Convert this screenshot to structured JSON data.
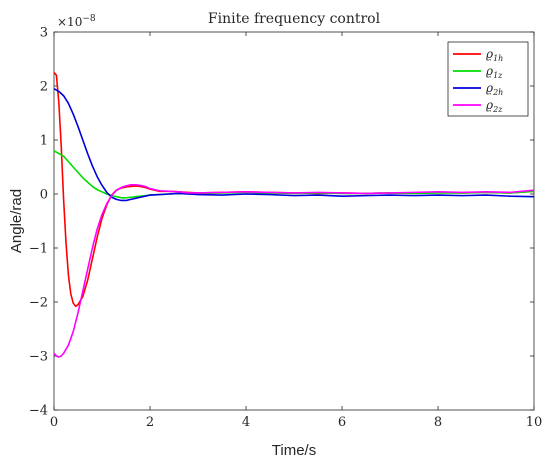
{
  "chart_data": {
    "type": "line",
    "title": "Finite frequency control",
    "xlabel": "Time/s",
    "ylabel": "Angle/rad",
    "y_exponent_base": "×10",
    "y_exponent_power": "−8",
    "xlim": [
      0,
      10
    ],
    "ylim": [
      -4,
      3
    ],
    "xticks": [
      0,
      2,
      4,
      6,
      8,
      10
    ],
    "yticks": [
      -4,
      -3,
      -2,
      -1,
      0,
      1,
      2,
      3
    ],
    "grid": false,
    "legend_position": "top-right",
    "series": [
      {
        "name_base": "ϱ",
        "name_sub": "1h",
        "color": "#ff0000",
        "x": [
          0,
          0.05,
          0.1,
          0.15,
          0.2,
          0.25,
          0.3,
          0.35,
          0.4,
          0.45,
          0.5,
          0.6,
          0.7,
          0.8,
          0.9,
          1.0,
          1.1,
          1.2,
          1.3,
          1.4,
          1.5,
          1.6,
          1.7,
          1.8,
          1.9,
          2.0,
          2.2,
          2.4,
          2.6,
          2.8,
          3.0,
          3.5,
          4.0,
          4.5,
          5.0,
          5.5,
          6.0,
          6.5,
          7.0,
          7.5,
          8.0,
          8.5,
          9.0,
          9.5,
          10.0
        ],
        "y": [
          2.25,
          2.2,
          1.7,
          0.9,
          -0.1,
          -0.9,
          -1.5,
          -1.85,
          -2.02,
          -2.08,
          -2.05,
          -1.9,
          -1.6,
          -1.2,
          -0.8,
          -0.45,
          -0.2,
          -0.02,
          0.07,
          0.11,
          0.13,
          0.14,
          0.15,
          0.14,
          0.12,
          0.09,
          0.05,
          0.05,
          0.04,
          0.03,
          0.02,
          0.03,
          0.04,
          0.03,
          0.02,
          0.01,
          0.02,
          0.01,
          0.02,
          0.02,
          0.03,
          0.02,
          0.03,
          0.02,
          0.05
        ]
      },
      {
        "name_base": "ϱ",
        "name_sub": "1z",
        "color": "#00dd00",
        "x": [
          0,
          0.1,
          0.2,
          0.3,
          0.4,
          0.5,
          0.6,
          0.7,
          0.8,
          0.9,
          1.0,
          1.1,
          1.2,
          1.3,
          1.4,
          1.5,
          1.6,
          1.7,
          1.8,
          1.9,
          2.0,
          2.2,
          2.4,
          2.6,
          2.8,
          3.0,
          3.5,
          4.0,
          4.5,
          5.0,
          5.5,
          6.0,
          6.5,
          7.0,
          7.5,
          8.0,
          8.5,
          9.0,
          9.5,
          10.0
        ],
        "y": [
          0.8,
          0.75,
          0.7,
          0.6,
          0.5,
          0.4,
          0.3,
          0.22,
          0.14,
          0.08,
          0.04,
          0.0,
          -0.03,
          -0.05,
          -0.07,
          -0.07,
          -0.06,
          -0.05,
          -0.04,
          -0.03,
          -0.02,
          -0.01,
          0.0,
          0.01,
          0.0,
          0.01,
          0.02,
          0.03,
          0.02,
          0.01,
          0.02,
          0.01,
          0.01,
          0.02,
          0.01,
          0.02,
          0.02,
          0.03,
          0.02,
          0.05
        ]
      },
      {
        "name_base": "ϱ",
        "name_sub": "2h",
        "color": "#0000dd",
        "x": [
          0,
          0.1,
          0.2,
          0.3,
          0.4,
          0.5,
          0.6,
          0.7,
          0.8,
          0.9,
          1.0,
          1.1,
          1.2,
          1.3,
          1.4,
          1.5,
          1.6,
          1.7,
          1.8,
          1.9,
          2.0,
          2.2,
          2.4,
          2.6,
          2.8,
          3.0,
          3.5,
          4.0,
          4.5,
          5.0,
          5.5,
          6.0,
          6.5,
          7.0,
          7.5,
          8.0,
          8.5,
          9.0,
          9.5,
          10.0
        ],
        "y": [
          1.95,
          1.9,
          1.82,
          1.68,
          1.48,
          1.25,
          1.0,
          0.75,
          0.52,
          0.32,
          0.16,
          0.03,
          -0.06,
          -0.1,
          -0.12,
          -0.12,
          -0.1,
          -0.08,
          -0.06,
          -0.04,
          -0.02,
          -0.01,
          0.0,
          0.01,
          0.0,
          -0.01,
          -0.02,
          0.0,
          -0.01,
          -0.03,
          -0.02,
          -0.04,
          -0.03,
          -0.02,
          -0.03,
          -0.02,
          -0.03,
          -0.02,
          -0.04,
          -0.05
        ]
      },
      {
        "name_base": "ϱ",
        "name_sub": "2z",
        "color": "#ff00ff",
        "x": [
          0,
          0.05,
          0.1,
          0.15,
          0.2,
          0.3,
          0.4,
          0.5,
          0.6,
          0.7,
          0.8,
          0.9,
          1.0,
          1.1,
          1.2,
          1.3,
          1.4,
          1.5,
          1.6,
          1.7,
          1.8,
          1.9,
          2.0,
          2.2,
          2.4,
          2.6,
          2.8,
          3.0,
          3.5,
          4.0,
          4.5,
          5.0,
          5.5,
          6.0,
          6.5,
          7.0,
          7.5,
          8.0,
          8.5,
          9.0,
          9.5,
          10.0
        ],
        "y": [
          -2.95,
          -3.0,
          -3.02,
          -3.0,
          -2.95,
          -2.8,
          -2.55,
          -2.2,
          -1.8,
          -1.4,
          -1.0,
          -0.65,
          -0.38,
          -0.18,
          -0.03,
          0.07,
          0.12,
          0.15,
          0.17,
          0.17,
          0.16,
          0.14,
          0.1,
          0.06,
          0.05,
          0.04,
          0.02,
          0.02,
          0.03,
          0.04,
          0.03,
          0.02,
          0.03,
          0.02,
          0.01,
          0.02,
          0.03,
          0.04,
          0.03,
          0.04,
          0.03,
          0.07
        ]
      }
    ]
  }
}
